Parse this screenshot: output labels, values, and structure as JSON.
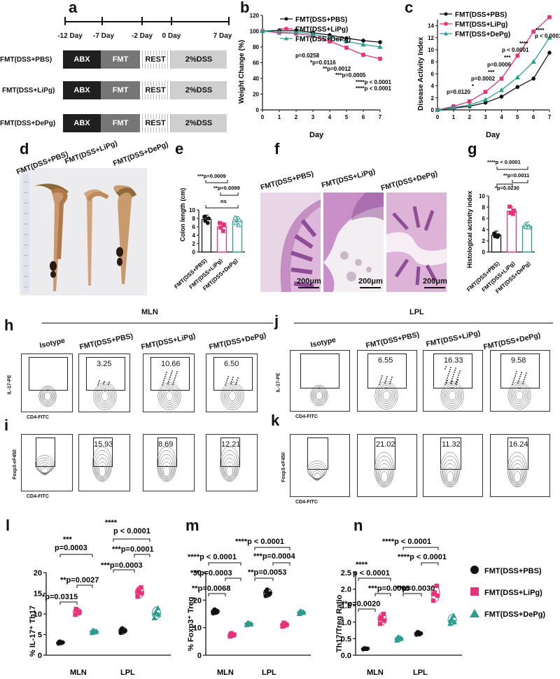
{
  "panel_letters": {
    "a": "a",
    "b": "b",
    "c": "c",
    "d": "d",
    "e": "e",
    "f": "f",
    "g": "g",
    "h": "h",
    "i": "i",
    "j": "j",
    "k": "k",
    "l": "l",
    "m": "m",
    "n": "n"
  },
  "timeline": {
    "days": [
      "-12 Day",
      "-7 Day",
      "-2 Day",
      "0 Day",
      "7 Day"
    ],
    "groups": [
      "FMT(DSS+PBS)",
      "FMT(DSS+LiPg)",
      "FMT(DSS+DePg)"
    ],
    "segments": {
      "abx": "ABX",
      "fmt": "FMT",
      "rest": "REST",
      "dss": "2%DSS"
    }
  },
  "colors": {
    "pbs": "#111111",
    "lipg": "#e8317a",
    "depg": "#2a9d8f"
  },
  "chart_b": {
    "type": "line",
    "xlabel": "Day",
    "ylabel": "Weight Change (%)",
    "ylim": [
      0,
      120
    ],
    "xlim": [
      0,
      7
    ],
    "yticks": [
      "0",
      "20",
      "40",
      "60",
      "80",
      "100",
      "120"
    ],
    "xticks": [
      "0",
      "1",
      "2",
      "3",
      "4",
      "5",
      "6",
      "7"
    ],
    "series": [
      {
        "name": "FMT(DSS+PBS)",
        "values": [
          100,
          101,
          101,
          98,
          95,
          91,
          88,
          86
        ]
      },
      {
        "name": "FMT(DSS+LiPg)",
        "values": [
          100,
          98,
          97,
          94,
          87,
          79,
          70,
          65
        ]
      },
      {
        "name": "FMT(DSS+DePg)",
        "values": [
          100,
          99,
          99,
          96,
          92,
          87,
          83,
          80
        ]
      }
    ],
    "annotations": [
      "p=0.0258",
      "*p=0.0116",
      "**p=0.0012",
      "***p=0.0005",
      "****p < 0.0001",
      "****p < 0.0001"
    ]
  },
  "chart_c": {
    "type": "line",
    "xlabel": "Day",
    "ylabel": "Disease Activity Index",
    "ylim": [
      0,
      15
    ],
    "xlim": [
      0,
      7
    ],
    "yticks": [
      "0",
      "2",
      "4",
      "6",
      "8",
      "10",
      "12",
      "14"
    ],
    "xticks": [
      "0",
      "1",
      "2",
      "3",
      "4",
      "5",
      "6",
      "7"
    ],
    "series": [
      {
        "name": "FMT(DSS+PBS)",
        "values": [
          0,
          0.3,
          0.6,
          1.2,
          2.2,
          3.8,
          5.2,
          9.5
        ]
      },
      {
        "name": "FMT(DSS+LiPg)",
        "values": [
          0,
          0.6,
          1.4,
          3.0,
          5.2,
          9.0,
          13.0,
          15.4
        ]
      },
      {
        "name": "FMT(DSS+DePg)",
        "values": [
          0,
          0.4,
          0.8,
          1.7,
          3.3,
          5.4,
          8.0,
          12.0
        ]
      }
    ],
    "annotations": [
      "p=0.0120",
      "p=0.0002",
      "p=0.0006",
      "p < 0.0001",
      "p < 0.0001",
      "****",
      "****",
      "***",
      "***",
      "*"
    ]
  },
  "panel_d": {
    "labels": [
      "FMT(DSS+PBS)",
      "FMT(DSS+LiPg)",
      "FMT(DSS+DePg)"
    ]
  },
  "chart_e": {
    "type": "bar",
    "ylabel": "Colon length (cm)",
    "ylim": [
      0,
      10
    ],
    "yticks": [
      "0",
      "2",
      "4",
      "6",
      "8",
      "10"
    ],
    "categories": [
      "FMT(DSS+PBS)",
      "FMT(DSS+LiPg)",
      "FMT(DSS+DePg)"
    ],
    "values": [
      7.8,
      6.0,
      7.4
    ],
    "points": [
      [
        8.4,
        8.0,
        7.4,
        6.9
      ],
      [
        6.9,
        6.5,
        5.8,
        5.0
      ],
      [
        8.2,
        7.6,
        6.9,
        6.4
      ]
    ],
    "annotations": [
      "***p=0.0009",
      "**p=0.0099",
      "ns"
    ]
  },
  "panel_f": {
    "labels": [
      "FMT(DSS+PBS)",
      "FMT(DSS+LiPg)",
      "FMT(DSS+DePg)"
    ],
    "scale": "200μm"
  },
  "chart_g": {
    "type": "bar",
    "ylabel": "Histological activity index",
    "ylim": [
      0,
      10
    ],
    "yticks": [
      "0",
      "2",
      "4",
      "6",
      "8",
      "10"
    ],
    "categories": [
      "FMT(DSS+PBS)",
      "FMT(DSS+LiPg)",
      "FMT(DSS+DePg)"
    ],
    "values": [
      3.0,
      7.3,
      4.6
    ],
    "points": [
      [
        3.3,
        3.0,
        2.8,
        2.7
      ],
      [
        8.1,
        7.4,
        7.0,
        6.8
      ],
      [
        4.8,
        4.6,
        4.5,
        4.4
      ]
    ],
    "annotations": [
      "****p < 0.0001",
      "**p=0.0011",
      "*p=0.0230"
    ]
  },
  "flow": {
    "mln_title": "MLN",
    "lpl_title": "LPL",
    "col_titles": [
      "Isotype",
      "FMT(DSS+PBS)",
      "FMT(DSS+LiPg)",
      "FMT(DSS+DePg)"
    ],
    "il17_label": "IL-17-PE",
    "cd4_label": "CD4-FITC",
    "foxp3_label": "Foxp3-eF450",
    "h_values": [
      "",
      "3.25",
      "10.66",
      "6.50"
    ],
    "j_values": [
      "",
      "6.55",
      "16.33",
      "9.58"
    ],
    "i_values": [
      "",
      "15.93",
      "8.69",
      "12.21"
    ],
    "k_values": [
      "",
      "21.02",
      "11.32",
      "16.24"
    ]
  },
  "chart_l": {
    "type": "scatter",
    "ylabel": "% IL-17⁺ Th17",
    "ylim": [
      0,
      20
    ],
    "yticks": [
      "0",
      "5",
      "10",
      "15",
      "20"
    ],
    "categories": [
      "MLN",
      "LPL"
    ],
    "series": [
      {
        "name": "FMT(DSS+PBS)",
        "values": [
          [
            2.8,
            3.1,
            3.3,
            3.0,
            3.2
          ],
          [
            5.4,
            5.9,
            6.5,
            5.8,
            6.3
          ]
        ]
      },
      {
        "name": "FMT(DSS+LiPg)",
        "values": [
          [
            9.8,
            10.3,
            10.9,
            10.5,
            11.2
          ],
          [
            14.2,
            15.0,
            15.8,
            16.4,
            15.3
          ]
        ]
      },
      {
        "name": "FMT(DSS+DePg)",
        "values": [
          [
            5.4,
            5.8,
            6.0,
            5.6,
            5.9
          ],
          [
            9.0,
            9.8,
            10.5,
            11.4,
            10.1
          ]
        ]
      }
    ],
    "annotations": [
      "****",
      "p < 0.0001",
      "***p=0.0001",
      "***p=0.0003",
      "***",
      "p=0.0003",
      "**p=0.0027",
      "*p=0.0315"
    ]
  },
  "chart_m": {
    "type": "scatter",
    "ylabel": "% Foxp3⁺ Treg",
    "ylim": [
      0,
      30
    ],
    "yticks": [
      "0",
      "10",
      "20",
      "30"
    ],
    "categories": [
      "MLN",
      "LPL"
    ],
    "series": [
      {
        "name": "FMT(DSS+PBS)",
        "values": [
          [
            15.2,
            16.0,
            16.6,
            15.5,
            15.9
          ],
          [
            21.5,
            22.5,
            23.8,
            22.0,
            23.0
          ]
        ]
      },
      {
        "name": "FMT(DSS+LiPg)",
        "values": [
          [
            6.8,
            7.5,
            8.0,
            7.2,
            7.6
          ],
          [
            10.4,
            11.0,
            11.8,
            11.2,
            10.8
          ]
        ]
      },
      {
        "name": "FMT(DSS+DePg)",
        "values": [
          [
            11.0,
            11.4,
            11.8,
            11.2,
            11.6
          ],
          [
            15.0,
            15.6,
            16.0,
            15.4,
            15.8
          ]
        ]
      }
    ],
    "annotations": [
      "****p < 0.0001",
      "***p=0.0004",
      "****p < 0.0001",
      "**p=0.0053",
      "***p=0.0003",
      "**p=0.0068"
    ]
  },
  "chart_n": {
    "type": "scatter",
    "ylabel": "Th17/Treg Ratio",
    "ylim": [
      0,
      2.5
    ],
    "yticks": [
      "0.0",
      "0.5",
      "1.0",
      "1.5",
      "2.0",
      "2.5"
    ],
    "categories": [
      "MLN",
      "LPL"
    ],
    "series": [
      {
        "name": "FMT(DSS+PBS)",
        "values": [
          [
            0.18,
            0.2,
            0.21,
            0.19,
            0.2
          ],
          [
            0.62,
            0.66,
            0.7,
            0.64,
            0.68
          ]
        ]
      },
      {
        "name": "FMT(DSS+LiPg)",
        "values": [
          [
            0.95,
            1.05,
            1.15,
            1.25,
            1.1
          ],
          [
            1.65,
            1.8,
            1.9,
            2.1,
            1.85
          ]
        ]
      },
      {
        "name": "FMT(DSS+DePg)",
        "values": [
          [
            0.45,
            0.5,
            0.55,
            0.5,
            0.52
          ],
          [
            0.95,
            1.0,
            1.1,
            1.2,
            1.05
          ]
        ]
      }
    ],
    "annotations": [
      "****p < 0.0001",
      "****p < 0.0001",
      "****",
      "p < 0.0001",
      "***p=0.0005",
      "**p=0.0030",
      "**p=0.0020"
    ]
  },
  "legend": [
    "FMT(DSS+PBS)",
    "FMT(DSS+LiPg)",
    "FMT(DSS+DePg)"
  ]
}
